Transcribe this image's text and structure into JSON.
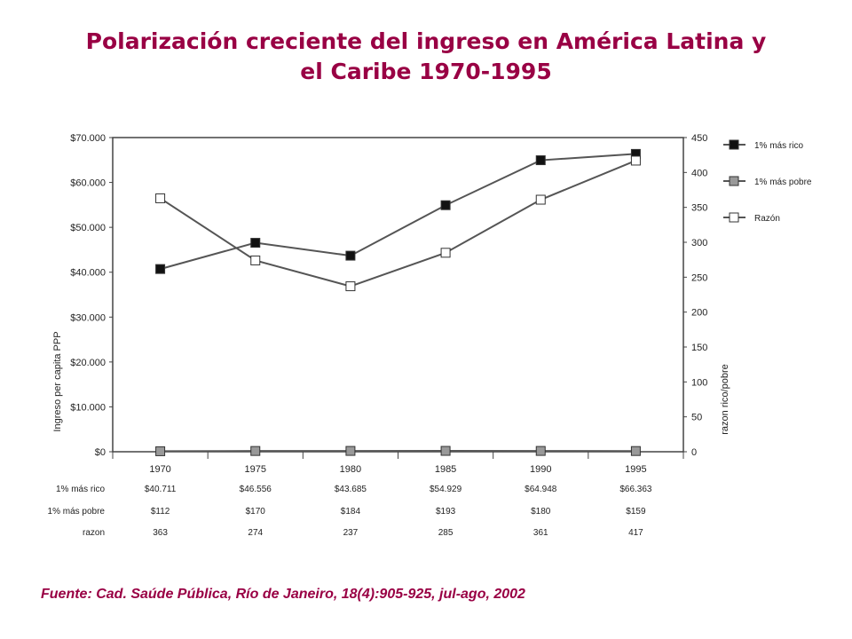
{
  "title": "Polarización creciente del ingreso en América Latina y el Caribe 1970-1995",
  "source": "Fuente: Cad. Saúde Pública, Río de Janeiro, 18(4):905-925, jul-ago, 2002",
  "chart_data": {
    "type": "line",
    "x": [
      "1970",
      "1975",
      "1980",
      "1985",
      "1990",
      "1995"
    ],
    "ylabel": "Ingreso per capita PPP",
    "y2label": "razon rico/pobre",
    "ylim": [
      0,
      70000
    ],
    "y2lim": [
      0,
      450
    ],
    "y_ticks": [
      "$0",
      "$10.000",
      "$20.000",
      "$30.000",
      "$40.000",
      "$50.000",
      "$60.000",
      "$70.000"
    ],
    "y2_ticks": [
      "0",
      "50",
      "100",
      "150",
      "200",
      "250",
      "300",
      "350",
      "400",
      "450"
    ],
    "legend_position": "right",
    "grid": false,
    "series": [
      {
        "name": "1% más rico",
        "axis": "left",
        "values": [
          40711,
          46556,
          43685,
          54929,
          64948,
          66363
        ],
        "marker_color": "#111111"
      },
      {
        "name": "1% más pobre",
        "axis": "left",
        "values": [
          112,
          170,
          184,
          193,
          180,
          159
        ],
        "marker_color": "#999999"
      },
      {
        "name": "Razón",
        "axis": "right",
        "values": [
          363,
          274,
          237,
          285,
          361,
          417
        ],
        "marker_color": "#ffffff"
      }
    ],
    "table": {
      "row_labels": [
        "1% más rico",
        "1% más pobre",
        "razon"
      ],
      "rows": [
        [
          "$40.711",
          "$46.556",
          "$43.685",
          "$54.929",
          "$64.948",
          "$66.363"
        ],
        [
          "$112",
          "$170",
          "$184",
          "$193",
          "$180",
          "$159"
        ],
        [
          "363",
          "274",
          "237",
          "285",
          "361",
          "417"
        ]
      ]
    }
  }
}
